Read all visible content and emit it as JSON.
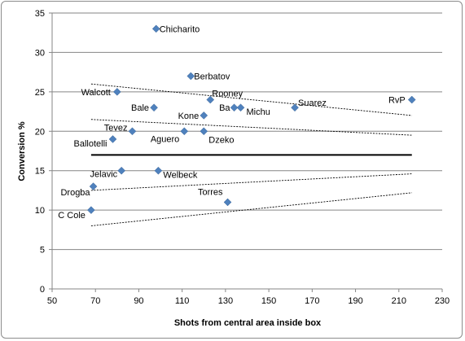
{
  "chart_data": {
    "type": "scatter",
    "title": "",
    "xlabel": "Shots from central area inside box",
    "ylabel": "Conversion %",
    "xlim": [
      50,
      230
    ],
    "ylim": [
      0,
      35
    ],
    "x_ticks": [
      50,
      70,
      90,
      110,
      130,
      150,
      170,
      190,
      210,
      230
    ],
    "y_ticks": [
      0,
      5,
      10,
      15,
      20,
      25,
      30,
      35
    ],
    "grid": "horizontal",
    "legend": "none",
    "marker_color": "#4f81bd",
    "points": [
      {
        "label": "Chicharito",
        "x": 98,
        "y": 33
      },
      {
        "label": "Berbatov",
        "x": 114,
        "y": 27
      },
      {
        "label": "Walcott",
        "x": 80,
        "y": 25
      },
      {
        "label": "Rooney",
        "x": 123,
        "y": 24
      },
      {
        "label": "RvP",
        "x": 216,
        "y": 24
      },
      {
        "label": "Bale",
        "x": 97,
        "y": 23
      },
      {
        "label": "Ba",
        "x": 134,
        "y": 23
      },
      {
        "label": "Michu",
        "x": 137,
        "y": 23
      },
      {
        "label": "Suarez",
        "x": 162,
        "y": 23
      },
      {
        "label": "Kone",
        "x": 120,
        "y": 22
      },
      {
        "label": "Tevez",
        "x": 87,
        "y": 20
      },
      {
        "label": "Aguero",
        "x": 111,
        "y": 20
      },
      {
        "label": "Dzeko",
        "x": 120,
        "y": 20
      },
      {
        "label": "Ballotelli",
        "x": 78,
        "y": 19
      },
      {
        "label": "Jelavic",
        "x": 82,
        "y": 15
      },
      {
        "label": "Welbeck",
        "x": 99,
        "y": 15
      },
      {
        "label": "Drogba",
        "x": 69,
        "y": 13
      },
      {
        "label": "Torres",
        "x": 131,
        "y": 11
      },
      {
        "label": "C Cole",
        "x": 68,
        "y": 10
      }
    ],
    "reference_lines": [
      {
        "style": "solid",
        "x": [
          68,
          216
        ],
        "y": [
          17,
          17
        ]
      },
      {
        "style": "dashed",
        "x": [
          68,
          216
        ],
        "y": [
          26,
          22
        ]
      },
      {
        "style": "dashed",
        "x": [
          68,
          216
        ],
        "y": [
          21.5,
          19.5
        ]
      },
      {
        "style": "dashed",
        "x": [
          68,
          216
        ],
        "y": [
          12.5,
          14.6
        ]
      },
      {
        "style": "dashed",
        "x": [
          68,
          216
        ],
        "y": [
          8,
          12.2
        ]
      }
    ]
  }
}
